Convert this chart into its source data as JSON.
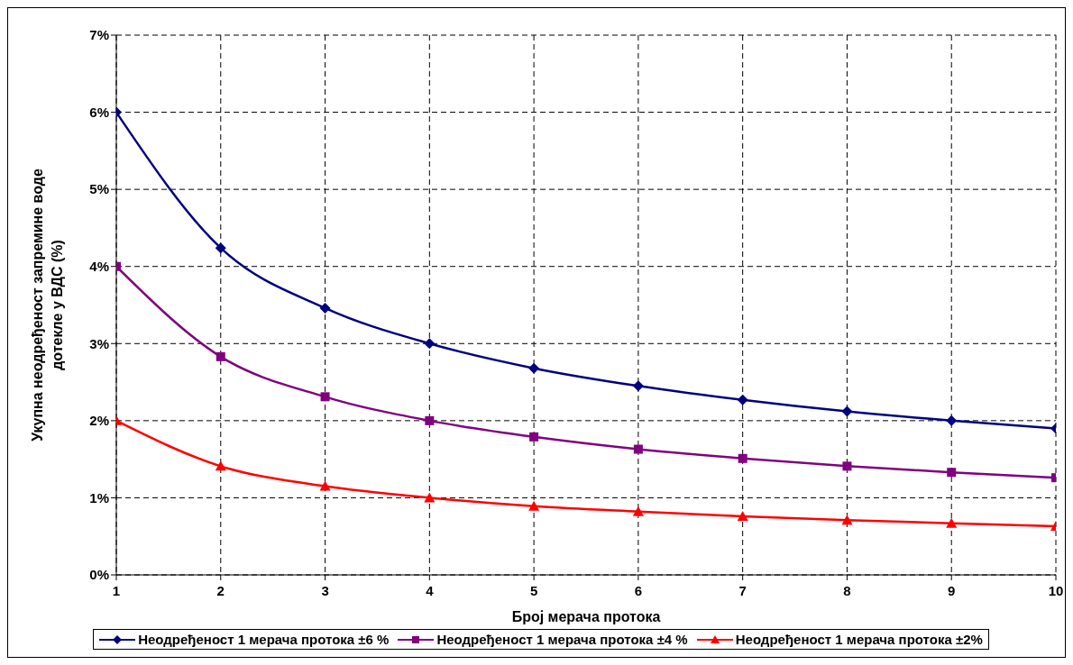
{
  "chart_data": {
    "type": "line",
    "xlabel": "Број мерача протока",
    "ylabel": "Укупна неодређеност запремине воде\nдотекле у ВДС (%)",
    "x": [
      1,
      2,
      3,
      4,
      5,
      6,
      7,
      8,
      9,
      10
    ],
    "xlim": [
      1,
      10
    ],
    "xticks": [
      1,
      2,
      3,
      4,
      5,
      6,
      7,
      8,
      9,
      10
    ],
    "ylim": [
      0,
      7
    ],
    "yticks": [
      {
        "value": 0,
        "label": "0%"
      },
      {
        "value": 1,
        "label": "1%"
      },
      {
        "value": 2,
        "label": "2%"
      },
      {
        "value": 3,
        "label": "3%"
      },
      {
        "value": 4,
        "label": "4%"
      },
      {
        "value": 5,
        "label": "5%"
      },
      {
        "value": 6,
        "label": "6%"
      },
      {
        "value": 7,
        "label": "7%"
      }
    ],
    "grid": true,
    "legend": "bottom",
    "line_style": "solid",
    "series": [
      {
        "name": "Неодређеност 1 мерача протока ±6 %",
        "color": "#000080",
        "marker": "diamond",
        "values": [
          6,
          4.24,
          3.46,
          3,
          2.68,
          2.45,
          2.27,
          2.12,
          2,
          1.9
        ]
      },
      {
        "name": "Неодређеност 1 мерача протока ±4 %",
        "color": "#800080",
        "marker": "square",
        "values": [
          4,
          2.83,
          2.31,
          2,
          1.79,
          1.63,
          1.51,
          1.41,
          1.33,
          1.26
        ]
      },
      {
        "name": "Неодређеност 1 мерача протока ±2%",
        "color": "#ff0000",
        "marker": "triangle",
        "values": [
          2,
          1.41,
          1.15,
          1,
          0.89,
          0.82,
          0.76,
          0.71,
          0.67,
          0.63
        ]
      }
    ]
  }
}
